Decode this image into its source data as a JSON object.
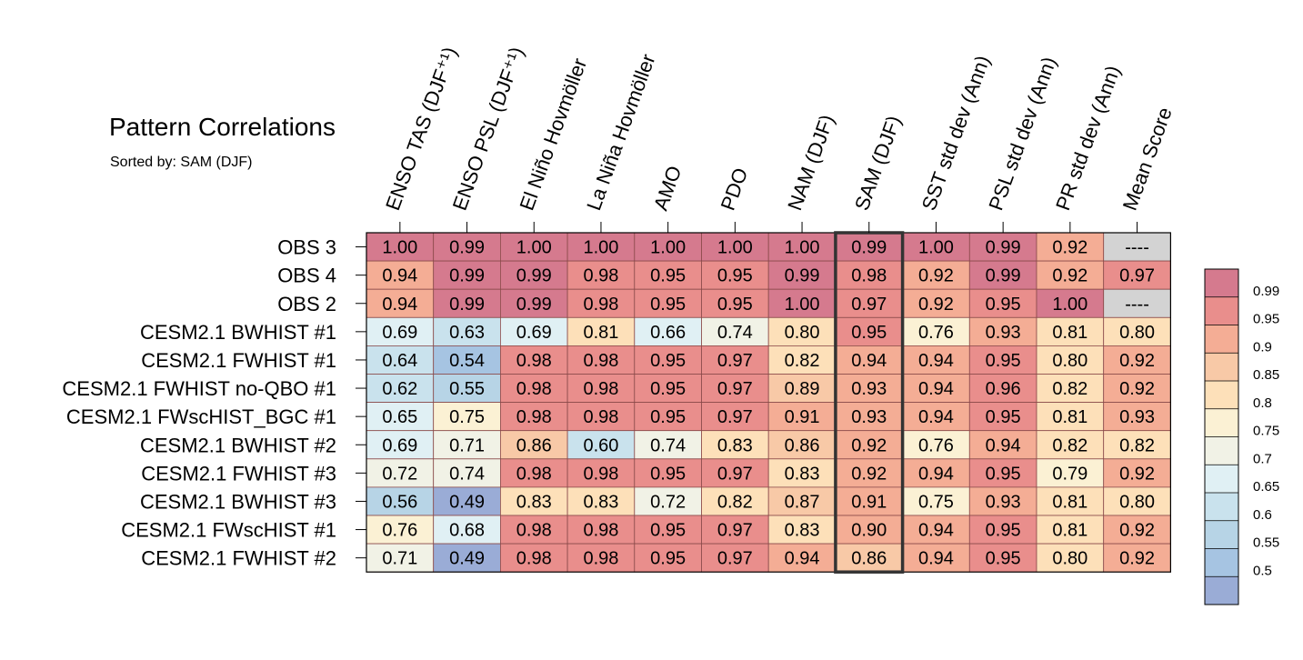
{
  "title": "Pattern Correlations",
  "subtitle": {
    "label": "Sorted by:",
    "value": "SAM (DJF)"
  },
  "chart_data": {
    "type": "heatmap",
    "highlighted_column": "SAM (DJF)",
    "columns": [
      "ENSO TAS (DJF⁺¹)",
      "ENSO PSL (DJF⁺¹)",
      "El Niño Hovmöller",
      "La Niña Hovmöller",
      "AMO",
      "PDO",
      "NAM (DJF)",
      "SAM (DJF)",
      "SST std dev (Ann)",
      "PSL std dev (Ann)",
      "PR std dev (Ann)",
      "Mean Score"
    ],
    "rows": [
      "OBS 3",
      "OBS 4",
      "OBS 2",
      "CESM2.1 BWHIST #1",
      "CESM2.1 FWHIST #1",
      "CESM2.1 FWHIST no-QBO #1",
      "CESM2.1 FWscHIST_BGC #1",
      "CESM2.1 BWHIST #2",
      "CESM2.1 FWHIST #3",
      "CESM2.1 BWHIST #3",
      "CESM2.1 FWscHIST #1",
      "CESM2.1 FWHIST #2"
    ],
    "values": [
      [
        "1.00",
        "0.99",
        "1.00",
        "1.00",
        "1.00",
        "1.00",
        "1.00",
        "0.99",
        "1.00",
        "0.99",
        "0.92",
        "----"
      ],
      [
        "0.94",
        "0.99",
        "0.99",
        "0.98",
        "0.95",
        "0.95",
        "0.99",
        "0.98",
        "0.92",
        "0.99",
        "0.92",
        "0.97"
      ],
      [
        "0.94",
        "0.99",
        "0.99",
        "0.98",
        "0.95",
        "0.95",
        "1.00",
        "0.97",
        "0.92",
        "0.95",
        "1.00",
        "----"
      ],
      [
        "0.69",
        "0.63",
        "0.69",
        "0.81",
        "0.66",
        "0.74",
        "0.80",
        "0.95",
        "0.76",
        "0.93",
        "0.81",
        "0.80"
      ],
      [
        "0.64",
        "0.54",
        "0.98",
        "0.98",
        "0.95",
        "0.97",
        "0.82",
        "0.94",
        "0.94",
        "0.95",
        "0.80",
        "0.92"
      ],
      [
        "0.62",
        "0.55",
        "0.98",
        "0.98",
        "0.95",
        "0.97",
        "0.89",
        "0.93",
        "0.94",
        "0.96",
        "0.82",
        "0.92"
      ],
      [
        "0.65",
        "0.75",
        "0.98",
        "0.98",
        "0.95",
        "0.97",
        "0.91",
        "0.93",
        "0.94",
        "0.95",
        "0.81",
        "0.93"
      ],
      [
        "0.69",
        "0.71",
        "0.86",
        "0.60",
        "0.74",
        "0.83",
        "0.86",
        "0.92",
        "0.76",
        "0.94",
        "0.82",
        "0.82"
      ],
      [
        "0.72",
        "0.74",
        "0.98",
        "0.98",
        "0.95",
        "0.97",
        "0.83",
        "0.92",
        "0.94",
        "0.95",
        "0.79",
        "0.92"
      ],
      [
        "0.56",
        "0.49",
        "0.83",
        "0.83",
        "0.72",
        "0.82",
        "0.87",
        "0.91",
        "0.75",
        "0.93",
        "0.81",
        "0.80"
      ],
      [
        "0.76",
        "0.68",
        "0.98",
        "0.98",
        "0.95",
        "0.97",
        "0.83",
        "0.90",
        "0.94",
        "0.95",
        "0.81",
        "0.92"
      ],
      [
        "0.71",
        "0.49",
        "0.98",
        "0.98",
        "0.95",
        "0.97",
        "0.94",
        "0.86",
        "0.94",
        "0.95",
        "0.80",
        "0.92"
      ]
    ],
    "missing_value": "----",
    "colorbar": {
      "labels": [
        "0.99",
        "0.95",
        "0.9",
        "0.85",
        "0.8",
        "0.75",
        "0.7",
        "0.65",
        "0.6",
        "0.55",
        "0.5"
      ],
      "thresholds": [
        0.99,
        0.95,
        0.9,
        0.85,
        0.8,
        0.75,
        0.7,
        0.65,
        0.6,
        0.55,
        0.5
      ],
      "colors": [
        "#d57a8e",
        "#e98e8c",
        "#f4ad95",
        "#f8c9a7",
        "#fde0b9",
        "#fbf1d4",
        "#f1f2e6",
        "#e0f0f4",
        "#c9e2ed",
        "#b7d4e6",
        "#a6c4e2",
        "#9aacd6"
      ]
    },
    "missing_color": "#d3d3d3"
  }
}
